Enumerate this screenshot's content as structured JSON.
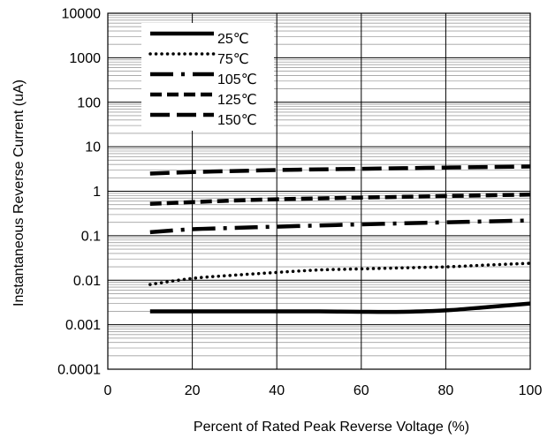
{
  "chart_data": {
    "type": "line",
    "title": "",
    "xlabel": "Percent of Rated Peak Reverse Voltage (%)",
    "ylabel": "Instantaneous Reverse Current (uA)",
    "xlim": [
      0,
      100
    ],
    "ylim": [
      0.0001,
      10000
    ],
    "yscale": "log",
    "grid": true,
    "legend_position": "top-left",
    "x_ticks": [
      "0",
      "20",
      "40",
      "60",
      "80",
      "100"
    ],
    "y_ticks": [
      "0.0001",
      "0.001",
      "0.01",
      "0.1",
      "1",
      "10",
      "100",
      "1000",
      "10000"
    ],
    "series": [
      {
        "name": "25℃",
        "style": "solid",
        "x": [
          10,
          20,
          30,
          40,
          50,
          60,
          70,
          80,
          90,
          100
        ],
        "y": [
          0.002,
          0.002,
          0.002,
          0.002,
          0.002,
          0.00195,
          0.00195,
          0.0021,
          0.0025,
          0.003
        ]
      },
      {
        "name": "75℃",
        "style": "dotted",
        "x": [
          10,
          20,
          30,
          40,
          50,
          60,
          70,
          80,
          90,
          100
        ],
        "y": [
          0.008,
          0.011,
          0.013,
          0.015,
          0.017,
          0.018,
          0.019,
          0.02,
          0.022,
          0.024
        ]
      },
      {
        "name": "105℃",
        "style": "dash-dot",
        "x": [
          10,
          20,
          30,
          40,
          50,
          60,
          70,
          80,
          90,
          100
        ],
        "y": [
          0.12,
          0.14,
          0.15,
          0.16,
          0.17,
          0.18,
          0.19,
          0.2,
          0.21,
          0.22
        ]
      },
      {
        "name": "125℃",
        "style": "dashed",
        "x": [
          10,
          20,
          30,
          40,
          50,
          60,
          70,
          80,
          90,
          100
        ],
        "y": [
          0.52,
          0.57,
          0.62,
          0.66,
          0.69,
          0.72,
          0.75,
          0.78,
          0.81,
          0.84
        ]
      },
      {
        "name": "150℃",
        "style": "long-dash",
        "x": [
          10,
          20,
          30,
          40,
          50,
          60,
          70,
          80,
          90,
          100
        ],
        "y": [
          2.5,
          2.7,
          2.85,
          3.0,
          3.1,
          3.2,
          3.3,
          3.4,
          3.5,
          3.6
        ]
      }
    ]
  }
}
